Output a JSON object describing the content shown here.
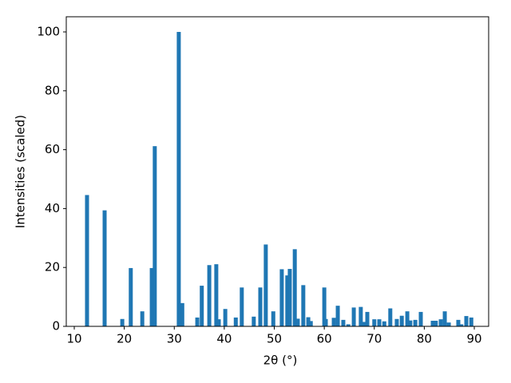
{
  "chart_data": {
    "type": "bar",
    "xlabel": "2θ (°)",
    "ylabel": "Intensities (scaled)",
    "color": "#1f77b4",
    "x": [
      12.55,
      16.07,
      19.6,
      21.3,
      23.6,
      25.5,
      26.1,
      30.9,
      31.6,
      34.6,
      35.5,
      37.0,
      38.4,
      38.9,
      40.2,
      42.3,
      43.5,
      45.9,
      47.2,
      48.3,
      49.8,
      51.5,
      52.6,
      53.1,
      54.1,
      54.7,
      55.8,
      56.8,
      57.3,
      60.0,
      60.3,
      61.9,
      62.7,
      63.8,
      64.8,
      65.9,
      67.3,
      67.8,
      68.6,
      70.0,
      71.0,
      72.0,
      73.2,
      74.5,
      75.5,
      76.6,
      77.2,
      78.2,
      79.3,
      81.7,
      82.3,
      83.3,
      84.1,
      84.9,
      86.8,
      87.4,
      88.4,
      89.4
    ],
    "values": [
      44.6,
      39.4,
      2.5,
      19.8,
      5.1,
      19.8,
      61.2,
      100,
      7.9,
      3.0,
      13.8,
      20.8,
      21.1,
      2.4,
      5.9,
      3.0,
      13.2,
      3.3,
      13.2,
      27.8,
      5.1,
      19.4,
      17.3,
      19.5,
      26.2,
      2.6,
      14.0,
      3.1,
      1.8,
      13.2,
      2.5,
      2.9,
      7.0,
      2.2,
      0.7,
      6.4,
      6.6,
      1.5,
      4.9,
      2.4,
      2.4,
      1.7,
      6.1,
      2.5,
      3.6,
      5.1,
      2.0,
      2.2,
      4.9,
      1.9,
      1.9,
      2.4,
      5.1,
      1.3,
      2.2,
      0.7,
      3.5,
      3.0
    ],
    "xlim": [
      8.4,
      92.87
    ],
    "ylim": [
      0,
      105.15
    ],
    "xticks": [
      10,
      20,
      30,
      40,
      50,
      60,
      70,
      80,
      90
    ],
    "yticks": [
      0,
      20,
      40,
      60,
      80,
      100
    ]
  }
}
